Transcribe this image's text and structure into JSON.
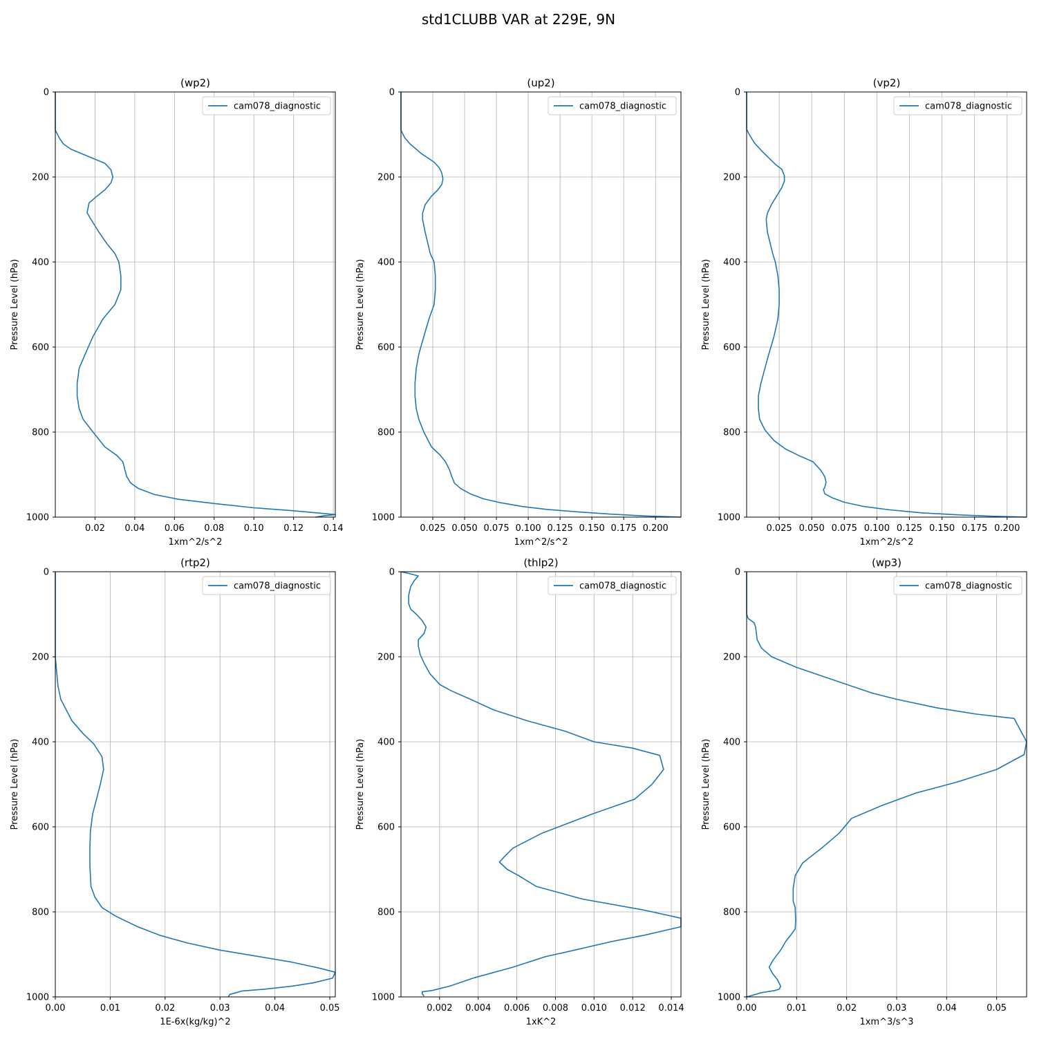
{
  "figure": {
    "title": "std1CLUBB VAR at 229E, 9N"
  },
  "style": {
    "line_color": "#1f77b4",
    "grid_color": "#b0b0b0"
  },
  "chart_data": [
    {
      "type": "line",
      "title": "(wp2)",
      "xlabel": "1xm^2/s^2",
      "ylabel": "Pressure Level (hPa)",
      "xlim": [
        0,
        0.141
      ],
      "ylim": [
        1000,
        0
      ],
      "xticks": [
        0.02,
        0.04,
        0.06,
        0.08,
        0.1,
        0.12,
        0.14
      ],
      "xtick_labels": [
        "0.02",
        "0.04",
        "0.06",
        "0.08",
        "0.10",
        "0.12",
        "0.14"
      ],
      "yticks": [
        0,
        200,
        400,
        600,
        800,
        1000
      ],
      "ytick_labels": [
        "0",
        "200",
        "400",
        "600",
        "800",
        "1000"
      ],
      "grid": true,
      "legend": "top-right",
      "series": [
        {
          "name": "cam078_diagnostic",
          "x": [
            0.0,
            0.0,
            0.002,
            0.004,
            0.008,
            0.025,
            0.028,
            0.029,
            0.028,
            0.025,
            0.021,
            0.017,
            0.016,
            0.018,
            0.022,
            0.026,
            0.03,
            0.032,
            0.033,
            0.033,
            0.03,
            0.024,
            0.019,
            0.015,
            0.012,
            0.011,
            0.011,
            0.012,
            0.014,
            0.019,
            0.025,
            0.031,
            0.034,
            0.035,
            0.036,
            0.038,
            0.042,
            0.05,
            0.062,
            0.08,
            0.1,
            0.12,
            0.132,
            0.141,
            0.135,
            0.131
          ],
          "y": [
            0,
            90,
            108,
            122,
            135,
            168,
            183,
            200,
            214,
            230,
            245,
            261,
            284,
            300,
            330,
            357,
            380,
            400,
            432,
            465,
            500,
            534,
            575,
            617,
            650,
            685,
            715,
            745,
            770,
            800,
            835,
            855,
            870,
            888,
            905,
            920,
            933,
            947,
            958,
            968,
            978,
            985,
            990,
            994,
            997,
            1000
          ]
        }
      ]
    },
    {
      "type": "line",
      "title": "(up2)",
      "xlabel": "1xm^2/s^2",
      "ylabel": "Pressure Level (hPa)",
      "xlim": [
        0,
        0.22
      ],
      "ylim": [
        1000,
        0
      ],
      "xticks": [
        0.025,
        0.05,
        0.075,
        0.1,
        0.125,
        0.15,
        0.175,
        0.2
      ],
      "xtick_labels": [
        "0.025",
        "0.050",
        "0.075",
        "0.100",
        "0.125",
        "0.150",
        "0.175",
        "0.200"
      ],
      "yticks": [
        0,
        200,
        400,
        600,
        800,
        1000
      ],
      "ytick_labels": [
        "0",
        "200",
        "400",
        "600",
        "800",
        "1000"
      ],
      "grid": true,
      "legend": "top-right",
      "series": [
        {
          "name": "cam078_diagnostic",
          "x": [
            0.0,
            0.0,
            0.003,
            0.007,
            0.016,
            0.026,
            0.03,
            0.032,
            0.033,
            0.032,
            0.029,
            0.024,
            0.019,
            0.017,
            0.017,
            0.019,
            0.021,
            0.023,
            0.026,
            0.027,
            0.027,
            0.026,
            0.022,
            0.018,
            0.014,
            0.012,
            0.011,
            0.011,
            0.012,
            0.014,
            0.018,
            0.024,
            0.031,
            0.035,
            0.038,
            0.04,
            0.042,
            0.047,
            0.055,
            0.065,
            0.078,
            0.095,
            0.115,
            0.14,
            0.165,
            0.19,
            0.22
          ],
          "y": [
            0,
            90,
            108,
            122,
            145,
            165,
            178,
            190,
            205,
            218,
            230,
            245,
            265,
            285,
            300,
            330,
            355,
            380,
            400,
            432,
            465,
            500,
            534,
            575,
            617,
            650,
            685,
            715,
            745,
            770,
            800,
            835,
            855,
            870,
            888,
            905,
            920,
            933,
            946,
            957,
            966,
            975,
            982,
            988,
            993,
            997,
            1000
          ]
        }
      ]
    },
    {
      "type": "line",
      "title": "(vp2)",
      "xlabel": "1xm^2/s^2",
      "ylabel": "Pressure Level (hPa)",
      "xlim": [
        0,
        0.215
      ],
      "ylim": [
        1000,
        0
      ],
      "xticks": [
        0.025,
        0.05,
        0.075,
        0.1,
        0.125,
        0.15,
        0.175,
        0.2
      ],
      "xtick_labels": [
        "0.025",
        "0.050",
        "0.075",
        "0.100",
        "0.125",
        "0.150",
        "0.175",
        "0.200"
      ],
      "yticks": [
        0,
        200,
        400,
        600,
        800,
        1000
      ],
      "ytick_labels": [
        "0",
        "200",
        "400",
        "600",
        "800",
        "1000"
      ],
      "grid": true,
      "legend": "top-right",
      "series": [
        {
          "name": "cam078_diagnostic",
          "x": [
            0.0,
            0.0,
            0.002,
            0.006,
            0.012,
            0.022,
            0.027,
            0.029,
            0.029,
            0.027,
            0.023,
            0.019,
            0.016,
            0.015,
            0.016,
            0.018,
            0.02,
            0.022,
            0.024,
            0.025,
            0.025,
            0.024,
            0.021,
            0.017,
            0.014,
            0.011,
            0.009,
            0.009,
            0.01,
            0.014,
            0.021,
            0.03,
            0.04,
            0.051,
            0.057,
            0.06,
            0.061,
            0.06,
            0.059,
            0.06,
            0.066,
            0.075,
            0.09,
            0.11,
            0.135,
            0.165,
            0.19,
            0.215
          ],
          "y": [
            0,
            88,
            100,
            120,
            140,
            170,
            182,
            197,
            210,
            225,
            245,
            265,
            285,
            300,
            330,
            355,
            380,
            400,
            432,
            465,
            500,
            534,
            575,
            617,
            650,
            685,
            715,
            745,
            770,
            795,
            820,
            840,
            855,
            870,
            890,
            905,
            918,
            930,
            935,
            945,
            955,
            965,
            975,
            983,
            990,
            995,
            998,
            1000
          ]
        }
      ]
    },
    {
      "type": "line",
      "title": "(rtp2)",
      "xlabel": "1E-6x(kg/kg)^2",
      "ylabel": "Pressure Level (hPa)",
      "xlim": [
        0,
        0.051
      ],
      "ylim": [
        1000,
        0
      ],
      "xticks": [
        0,
        0.01,
        0.02,
        0.03,
        0.04,
        0.05
      ],
      "xtick_labels": [
        "0.00",
        "0.01",
        "0.02",
        "0.03",
        "0.04",
        "0.05"
      ],
      "yticks": [
        0,
        200,
        400,
        600,
        800,
        1000
      ],
      "ytick_labels": [
        "0",
        "200",
        "400",
        "600",
        "800",
        "1000"
      ],
      "grid": true,
      "legend": "top-right",
      "series": [
        {
          "name": "cam078_diagnostic",
          "x": [
            0.0,
            0.0,
            0.0002,
            0.0005,
            0.001,
            0.002,
            0.003,
            0.005,
            0.007,
            0.0085,
            0.0088,
            0.0082,
            0.0075,
            0.0068,
            0.0064,
            0.0063,
            0.0063,
            0.0065,
            0.0072,
            0.0085,
            0.011,
            0.015,
            0.019,
            0.024,
            0.03,
            0.037,
            0.043,
            0.048,
            0.051,
            0.0505,
            0.047,
            0.043,
            0.038,
            0.034,
            0.033,
            0.0318,
            0.0315
          ],
          "y": [
            0,
            200,
            230,
            270,
            300,
            325,
            350,
            380,
            405,
            435,
            465,
            500,
            535,
            570,
            610,
            650,
            690,
            740,
            765,
            790,
            810,
            835,
            855,
            873,
            890,
            905,
            918,
            932,
            942,
            956,
            967,
            975,
            982,
            986,
            990,
            994,
            1000
          ]
        }
      ]
    },
    {
      "type": "line",
      "title": "(thlp2)",
      "xlabel": "1xK^2",
      "ylabel": "Pressure Level (hPa)",
      "xlim": [
        0,
        0.0145
      ],
      "ylim": [
        1000,
        0
      ],
      "xticks": [
        0.002,
        0.004,
        0.006,
        0.008,
        0.01,
        0.012,
        0.014
      ],
      "xtick_labels": [
        "0.002",
        "0.004",
        "0.006",
        "0.008",
        "0.010",
        "0.012",
        "0.014"
      ],
      "yticks": [
        0,
        200,
        400,
        600,
        800,
        1000
      ],
      "ytick_labels": [
        "0",
        "200",
        "400",
        "600",
        "800",
        "1000"
      ],
      "grid": true,
      "legend": "top-right",
      "series": [
        {
          "name": "cam078_diagnostic",
          "x": [
            0.0,
            0.0005,
            0.0009,
            0.0007,
            0.0005,
            0.0004,
            0.0004,
            0.0005,
            0.0008,
            0.0011,
            0.0013,
            0.0012,
            0.0009,
            0.0009,
            0.001,
            0.0012,
            0.0015,
            0.002,
            0.0026,
            0.0036,
            0.0048,
            0.0065,
            0.0085,
            0.01,
            0.012,
            0.0134,
            0.0136,
            0.013,
            0.0121,
            0.0099,
            0.0073,
            0.0058,
            0.0054,
            0.0051,
            0.0055,
            0.0061,
            0.007,
            0.0094,
            0.0125,
            0.0145,
            0.0145,
            0.0126,
            0.0109,
            0.0087,
            0.0075,
            0.0058,
            0.0038,
            0.0025,
            0.0016,
            0.0011,
            0.0011,
            0.0012
          ],
          "y": [
            0,
            5,
            10,
            20,
            35,
            55,
            75,
            88,
            100,
            115,
            130,
            145,
            160,
            175,
            195,
            215,
            240,
            265,
            280,
            300,
            325,
            350,
            375,
            400,
            415,
            432,
            465,
            500,
            535,
            570,
            615,
            650,
            668,
            683,
            700,
            715,
            740,
            770,
            795,
            815,
            835,
            855,
            870,
            893,
            905,
            930,
            955,
            975,
            985,
            988,
            993,
            998
          ]
        }
      ]
    },
    {
      "type": "line",
      "title": "(wp3)",
      "xlabel": "1xm^3/s^3",
      "ylabel": "Pressure Level (hPa)",
      "xlim": [
        0,
        0.056
      ],
      "ylim": [
        1000,
        0
      ],
      "xticks": [
        0,
        0.01,
        0.02,
        0.03,
        0.04,
        0.05
      ],
      "xtick_labels": [
        "0.00",
        "0.01",
        "0.02",
        "0.03",
        "0.04",
        "0.05"
      ],
      "yticks": [
        0,
        200,
        400,
        600,
        800,
        1000
      ],
      "ytick_labels": [
        "0",
        "200",
        "400",
        "600",
        "800",
        "1000"
      ],
      "grid": true,
      "legend": "top-right",
      "series": [
        {
          "name": "cam078_diagnostic",
          "x": [
            0.0,
            0.0,
            0.0003,
            0.0015,
            0.0018,
            0.0021,
            0.003,
            0.005,
            0.01,
            0.015,
            0.02,
            0.025,
            0.03,
            0.038,
            0.046,
            0.0535,
            0.056,
            0.0555,
            0.05,
            0.042,
            0.034,
            0.027,
            0.021,
            0.0185,
            0.015,
            0.0112,
            0.0097,
            0.0093,
            0.0093,
            0.0097,
            0.0098,
            0.0097,
            0.0088,
            0.0078,
            0.0068,
            0.0052,
            0.0045,
            0.0052,
            0.0062,
            0.0068,
            0.0065,
            0.0056,
            0.003,
            0.0
          ],
          "y": [
            0,
            100,
            110,
            120,
            130,
            160,
            180,
            200,
            225,
            245,
            265,
            285,
            300,
            320,
            335,
            345,
            400,
            430,
            465,
            495,
            520,
            550,
            580,
            615,
            650,
            685,
            715,
            745,
            775,
            790,
            820,
            840,
            855,
            870,
            890,
            915,
            930,
            945,
            960,
            975,
            982,
            985,
            990,
            1000
          ]
        }
      ]
    }
  ]
}
